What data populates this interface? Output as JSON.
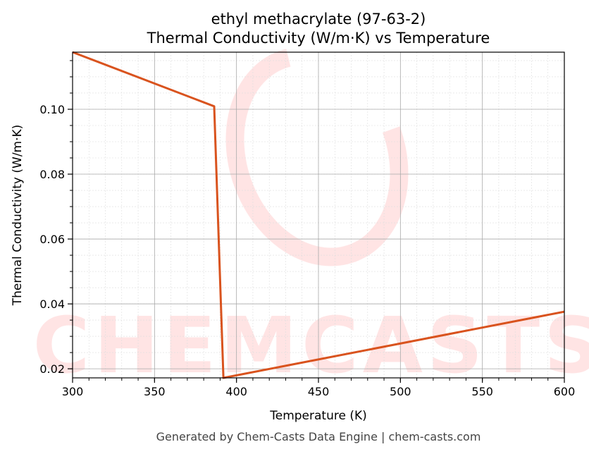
{
  "chart_data": {
    "type": "line",
    "title": "ethyl methacrylate (97-63-2)",
    "subtitle": "Thermal Conductivity (W/m·K) vs Temperature",
    "xlabel": "Temperature (K)",
    "ylabel": "Thermal Conductivity (W/m·K)",
    "xlim": [
      300,
      600
    ],
    "ylim": [
      0.0172,
      0.1176
    ],
    "xticks": [
      300,
      350,
      400,
      450,
      500,
      550,
      600
    ],
    "yticks": [
      0.02,
      0.04,
      0.06,
      0.08,
      0.1
    ],
    "ytick_labels": [
      "0.02",
      "0.04",
      "0.06",
      "0.08",
      "0.10"
    ],
    "grid": true,
    "series": [
      {
        "color": "#d9531e",
        "x": [
          300,
          386.4,
          392,
          600
        ],
        "y": [
          0.1176,
          0.1009,
          0.0172,
          0.0376
        ]
      }
    ],
    "watermark": "CHEMCASTS",
    "footer": "Generated by Chem-Casts Data Engine | chem-casts.com"
  }
}
